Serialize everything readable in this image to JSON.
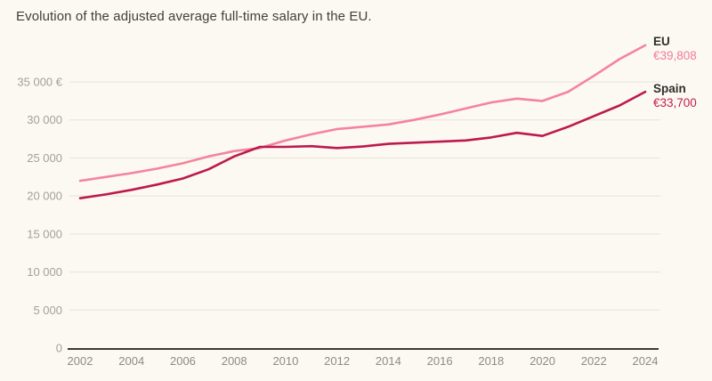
{
  "title": "Evolution of the adjusted average full-time salary in the EU.",
  "colors": {
    "background": "#fcf8f2",
    "title_text": "#403f3d",
    "gridline": "#e8e3da",
    "axis_line": "#3a3935",
    "y_label": "#a3a19b",
    "x_label": "#8d8c87",
    "eu_line": "#f4849e",
    "spain_line": "#bc1a4e",
    "legend_name": "#2f2e2c",
    "eu_value_text": "#ef7e97",
    "spain_value_text": "#c21e53"
  },
  "legend": {
    "eu_name": "EU",
    "eu_value": "€39,808",
    "spain_name": "Spain",
    "spain_value": "€33,700"
  },
  "chart_data": {
    "type": "line",
    "title": "Evolution of the adjusted average full-time salary in the EU.",
    "xlabel": "",
    "ylabel": "",
    "grid": "horizontal",
    "legend_position": "line-end-labels-right",
    "x": [
      2002,
      2003,
      2004,
      2005,
      2006,
      2007,
      2008,
      2009,
      2010,
      2011,
      2012,
      2013,
      2014,
      2015,
      2016,
      2017,
      2018,
      2019,
      2020,
      2021,
      2022,
      2023,
      2024
    ],
    "xticks": [
      2002,
      2004,
      2006,
      2008,
      2010,
      2012,
      2014,
      2016,
      2018,
      2020,
      2022,
      2024
    ],
    "ylim": [
      0,
      40000
    ],
    "yticks": [
      {
        "value": 0,
        "label": "0"
      },
      {
        "value": 5000,
        "label": "5 000"
      },
      {
        "value": 10000,
        "label": "10 000"
      },
      {
        "value": 15000,
        "label": "15 000"
      },
      {
        "value": 20000,
        "label": "20 000"
      },
      {
        "value": 25000,
        "label": "25 000"
      },
      {
        "value": 30000,
        "label": "30 000"
      },
      {
        "value": 35000,
        "label": "35 000 €"
      }
    ],
    "series": [
      {
        "name": "EU",
        "end_label_value": "€39,808",
        "color": "#f4849e",
        "values": [
          22000,
          22500,
          23000,
          23600,
          24300,
          25200,
          25900,
          26300,
          27300,
          28100,
          28800,
          29100,
          29400,
          30000,
          30700,
          31500,
          32300,
          32800,
          32500,
          33700,
          35800,
          38000,
          39808
        ]
      },
      {
        "name": "Spain",
        "end_label_value": "€33,700",
        "color": "#bc1a4e",
        "values": [
          19700,
          20200,
          20800,
          21500,
          22300,
          23500,
          25200,
          26450,
          26450,
          26550,
          26300,
          26500,
          26850,
          27000,
          27150,
          27300,
          27700,
          28300,
          27900,
          29100,
          30500,
          31900,
          33700
        ]
      }
    ]
  }
}
